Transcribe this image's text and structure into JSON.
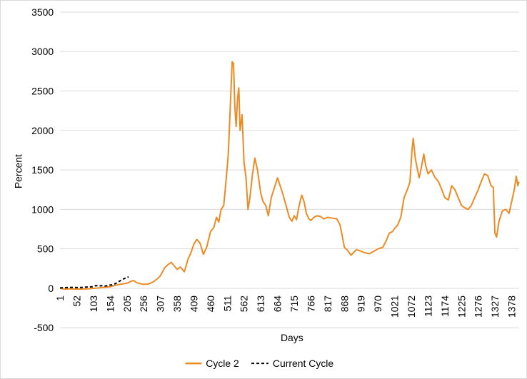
{
  "chart_data": {
    "type": "line",
    "title": "",
    "xlabel": "Days",
    "ylabel": "Percent",
    "ylim": [
      -500,
      3500
    ],
    "yticks": [
      "3500",
      "3000",
      "2500",
      "2000",
      "1500",
      "1000",
      "500",
      "0",
      "-500"
    ],
    "xlim": [
      1,
      1400
    ],
    "xticks": [
      "1",
      "52",
      "103",
      "154",
      "205",
      "256",
      "307",
      "358",
      "409",
      "460",
      "511",
      "562",
      "613",
      "664",
      "715",
      "766",
      "817",
      "868",
      "919",
      "970",
      "1021",
      "1072",
      "1123",
      "1174",
      "1225",
      "1276",
      "1327",
      "1378"
    ],
    "grid": "horizontal",
    "legend_position": "bottom",
    "series": [
      {
        "name": "Cycle 2",
        "color": "#ED8A22",
        "style": "solid",
        "points": [
          [
            1,
            0
          ],
          [
            15,
            -10
          ],
          [
            30,
            -5
          ],
          [
            52,
            -10
          ],
          [
            70,
            -8
          ],
          [
            90,
            -5
          ],
          [
            103,
            0
          ],
          [
            120,
            5
          ],
          [
            140,
            15
          ],
          [
            154,
            20
          ],
          [
            170,
            40
          ],
          [
            190,
            55
          ],
          [
            205,
            65
          ],
          [
            215,
            85
          ],
          [
            225,
            100
          ],
          [
            235,
            70
          ],
          [
            245,
            60
          ],
          [
            256,
            50
          ],
          [
            270,
            55
          ],
          [
            285,
            80
          ],
          [
            300,
            130
          ],
          [
            307,
            160
          ],
          [
            320,
            260
          ],
          [
            330,
            300
          ],
          [
            340,
            330
          ],
          [
            350,
            280
          ],
          [
            358,
            240
          ],
          [
            368,
            270
          ],
          [
            380,
            210
          ],
          [
            392,
            380
          ],
          [
            400,
            450
          ],
          [
            409,
            560
          ],
          [
            418,
            620
          ],
          [
            428,
            570
          ],
          [
            438,
            430
          ],
          [
            448,
            520
          ],
          [
            460,
            720
          ],
          [
            470,
            770
          ],
          [
            478,
            900
          ],
          [
            485,
            840
          ],
          [
            492,
            1000
          ],
          [
            500,
            1050
          ],
          [
            508,
            1400
          ],
          [
            514,
            1700
          ],
          [
            518,
            2100
          ],
          [
            522,
            2500
          ],
          [
            526,
            2870
          ],
          [
            530,
            2850
          ],
          [
            534,
            2300
          ],
          [
            538,
            2050
          ],
          [
            542,
            2400
          ],
          [
            546,
            2540
          ],
          [
            550,
            2000
          ],
          [
            556,
            2200
          ],
          [
            562,
            1600
          ],
          [
            568,
            1400
          ],
          [
            574,
            1000
          ],
          [
            580,
            1150
          ],
          [
            588,
            1450
          ],
          [
            595,
            1650
          ],
          [
            603,
            1500
          ],
          [
            613,
            1200
          ],
          [
            620,
            1100
          ],
          [
            628,
            1050
          ],
          [
            636,
            920
          ],
          [
            645,
            1150
          ],
          [
            655,
            1280
          ],
          [
            664,
            1400
          ],
          [
            672,
            1300
          ],
          [
            680,
            1200
          ],
          [
            690,
            1050
          ],
          [
            700,
            900
          ],
          [
            708,
            850
          ],
          [
            715,
            920
          ],
          [
            722,
            870
          ],
          [
            730,
            1050
          ],
          [
            738,
            1180
          ],
          [
            745,
            1100
          ],
          [
            752,
            950
          ],
          [
            760,
            880
          ],
          [
            766,
            860
          ],
          [
            775,
            900
          ],
          [
            785,
            920
          ],
          [
            795,
            910
          ],
          [
            805,
            880
          ],
          [
            817,
            900
          ],
          [
            830,
            890
          ],
          [
            845,
            880
          ],
          [
            855,
            800
          ],
          [
            862,
            650
          ],
          [
            868,
            520
          ],
          [
            878,
            480
          ],
          [
            888,
            420
          ],
          [
            895,
            450
          ],
          [
            905,
            490
          ],
          [
            919,
            470
          ],
          [
            930,
            450
          ],
          [
            945,
            440
          ],
          [
            958,
            470
          ],
          [
            970,
            500
          ],
          [
            985,
            520
          ],
          [
            995,
            600
          ],
          [
            1005,
            700
          ],
          [
            1015,
            720
          ],
          [
            1021,
            760
          ],
          [
            1030,
            800
          ],
          [
            1040,
            900
          ],
          [
            1050,
            1150
          ],
          [
            1060,
            1250
          ],
          [
            1068,
            1350
          ],
          [
            1074,
            1750
          ],
          [
            1078,
            1900
          ],
          [
            1084,
            1650
          ],
          [
            1090,
            1520
          ],
          [
            1096,
            1400
          ],
          [
            1103,
            1540
          ],
          [
            1110,
            1700
          ],
          [
            1116,
            1550
          ],
          [
            1123,
            1450
          ],
          [
            1133,
            1500
          ],
          [
            1145,
            1400
          ],
          [
            1155,
            1350
          ],
          [
            1165,
            1250
          ],
          [
            1174,
            1150
          ],
          [
            1185,
            1120
          ],
          [
            1195,
            1300
          ],
          [
            1205,
            1250
          ],
          [
            1215,
            1150
          ],
          [
            1225,
            1050
          ],
          [
            1235,
            1020
          ],
          [
            1245,
            1000
          ],
          [
            1255,
            1050
          ],
          [
            1265,
            1150
          ],
          [
            1276,
            1250
          ],
          [
            1285,
            1350
          ],
          [
            1295,
            1450
          ],
          [
            1305,
            1430
          ],
          [
            1315,
            1300
          ],
          [
            1322,
            1280
          ],
          [
            1327,
            700
          ],
          [
            1332,
            650
          ],
          [
            1340,
            860
          ],
          [
            1350,
            980
          ],
          [
            1360,
            1000
          ],
          [
            1370,
            950
          ],
          [
            1378,
            1100
          ],
          [
            1386,
            1250
          ],
          [
            1392,
            1420
          ],
          [
            1397,
            1300
          ],
          [
            1400,
            1350
          ]
        ]
      },
      {
        "name": "Current Cycle",
        "color": "#000000",
        "style": "dashed",
        "points": [
          [
            1,
            5
          ],
          [
            20,
            10
          ],
          [
            40,
            12
          ],
          [
            60,
            10
          ],
          [
            80,
            15
          ],
          [
            100,
            20
          ],
          [
            110,
            35
          ],
          [
            120,
            30
          ],
          [
            130,
            35
          ],
          [
            140,
            30
          ],
          [
            150,
            40
          ],
          [
            160,
            45
          ],
          [
            170,
            60
          ],
          [
            180,
            85
          ],
          [
            190,
            110
          ],
          [
            200,
            130
          ],
          [
            210,
            145
          ]
        ]
      }
    ]
  }
}
